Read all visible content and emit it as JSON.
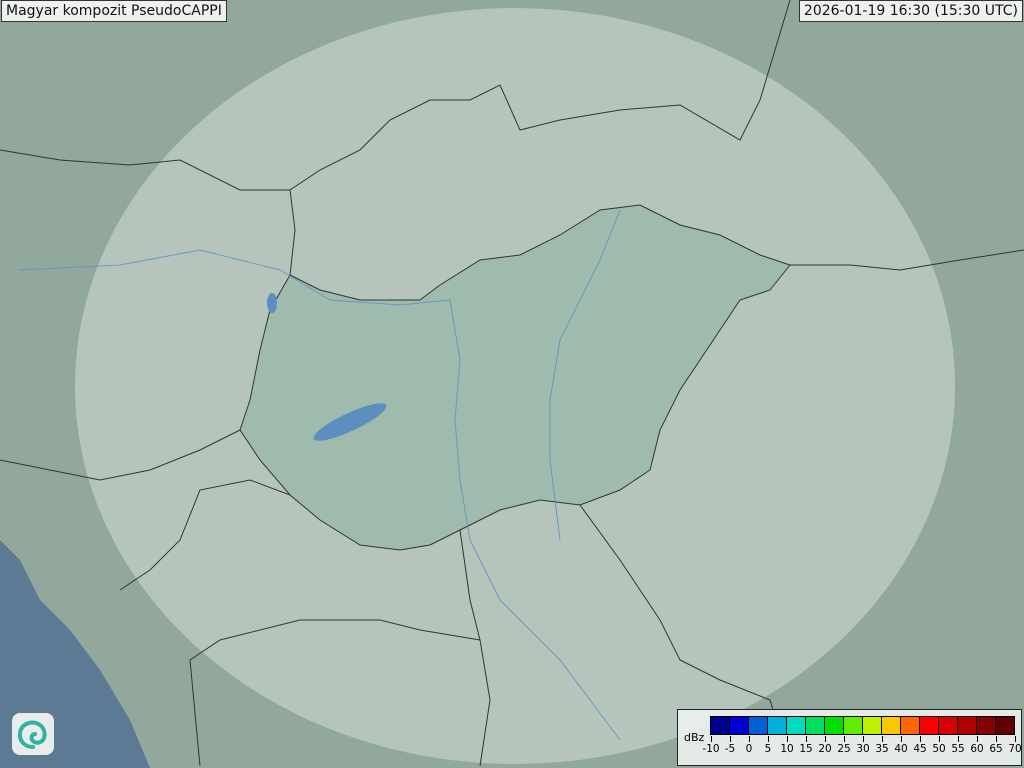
{
  "title": "Magyar kompozit  PseudoCAPPI",
  "timestamp": "2026-01-19 16:30 (15:30 UTC)",
  "logo_icon": "swirl-logo-icon",
  "legend": {
    "unit": "dBz",
    "ticks": [
      "-10",
      "-5",
      "0",
      "5",
      "10",
      "15",
      "20",
      "25",
      "30",
      "35",
      "40",
      "45",
      "50",
      "55",
      "60",
      "65",
      "70"
    ],
    "colors": [
      "#00008e",
      "#0000d2",
      "#0060d6",
      "#00b0da",
      "#00dcc0",
      "#00e060",
      "#00e000",
      "#60ee00",
      "#c0f000",
      "#f8c800",
      "#ff6400",
      "#ff0000",
      "#d80000",
      "#b00000",
      "#880000",
      "#600000"
    ]
  },
  "map_colors": {
    "terrain": "#93a89c",
    "coverage": "#c8d6cf",
    "hungary": "#8fb4a4",
    "sea": "#5c7a94",
    "border": "#333333",
    "river": "#5e8ec0"
  }
}
